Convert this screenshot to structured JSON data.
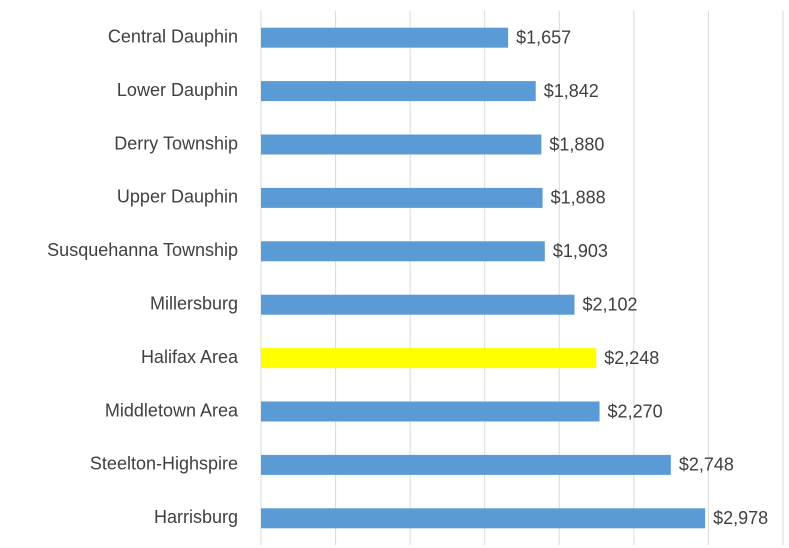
{
  "chart_data": {
    "type": "bar",
    "orientation": "horizontal",
    "categories": [
      "Central Dauphin",
      "Lower Dauphin",
      "Derry Township",
      "Upper Dauphin",
      "Susquehanna Township",
      "Millersburg",
      "Halifax Area",
      "Middletown Area",
      "Steelton-Highspire",
      "Harrisburg"
    ],
    "values": [
      1657,
      1842,
      1880,
      1888,
      1903,
      2102,
      2248,
      2270,
      2748,
      2978
    ],
    "value_labels": [
      "$1,657",
      "$1,842",
      "$1,880",
      "$1,888",
      "$1,903",
      "$2,102",
      "$2,248",
      "$2,270",
      "$2,748",
      "$2,978"
    ],
    "colors": [
      "#5b9bd5",
      "#5b9bd5",
      "#5b9bd5",
      "#5b9bd5",
      "#5b9bd5",
      "#5b9bd5",
      "#ffff00",
      "#5b9bd5",
      "#5b9bd5",
      "#5b9bd5"
    ],
    "xlim": [
      0,
      3500
    ],
    "xticks": [
      0,
      500,
      1000,
      1500,
      2000,
      2500,
      3000,
      3500
    ],
    "grid": true
  }
}
